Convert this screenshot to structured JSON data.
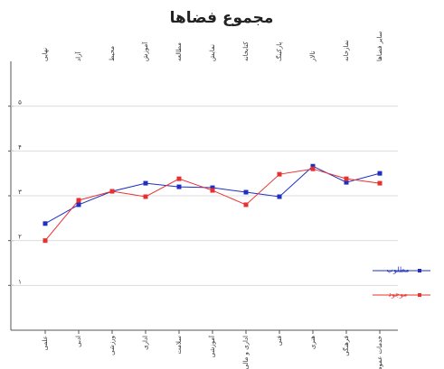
{
  "chart_data": {
    "type": "line",
    "title": "مجموع فضاها",
    "categories": [
      "علمی",
      "ادبی",
      "ورزشی",
      "اداری",
      "سلامت",
      "آموزشی",
      "اداری و مالی",
      "فنی",
      "هنری",
      "فرهنگی",
      "خدمات عمومی"
    ],
    "top_labels": [
      "نهایی",
      "آزاد",
      "محیط",
      "آموزش",
      "مطالعه",
      "نمایش",
      "کتابخانه",
      "پارکینگ",
      "تالار",
      "نمازخانه",
      "سایر فضاها"
    ],
    "series": [
      {
        "name": "مطلوب",
        "color": "#1f2fbf",
        "values": [
          2.38,
          2.8,
          3.1,
          3.28,
          3.2,
          3.18,
          3.08,
          2.98,
          3.66,
          3.3,
          3.5
        ]
      },
      {
        "name": "موجود",
        "color": "#e8312f",
        "values": [
          2.0,
          2.9,
          3.1,
          2.98,
          3.38,
          3.12,
          2.8,
          3.48,
          3.6,
          3.38,
          3.28
        ]
      }
    ],
    "ylim": [
      0,
      6
    ],
    "yticks": [
      {
        "value": 1,
        "label": "۱"
      },
      {
        "value": 2,
        "label": "۲"
      },
      {
        "value": 3,
        "label": "۳"
      },
      {
        "value": 4,
        "label": "۴"
      },
      {
        "value": 5,
        "label": "۵"
      }
    ],
    "grid": true,
    "legend": "right"
  }
}
